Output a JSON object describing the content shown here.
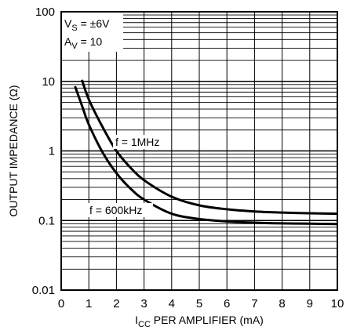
{
  "chart_data": {
    "type": "line",
    "xlabel_main": "I",
    "xlabel_sub": "CC",
    "xlabel_rest": " PER AMPLIFIER (mA)",
    "ylabel": "OUTPUT IMPEDANCE (Ω)",
    "x_ticks": [
      "0",
      "1",
      "2",
      "3",
      "4",
      "5",
      "6",
      "7",
      "8",
      "9",
      "10"
    ],
    "y_ticks": [
      "100",
      "10",
      "1",
      "0.1",
      "0.01"
    ],
    "xlim": [
      0,
      10
    ],
    "ylim": [
      0.01,
      100
    ],
    "y_scale": "log",
    "grid": true,
    "conditions": {
      "vs_main": "V",
      "vs_sub": "S",
      "vs_rest": " = ±6V",
      "av_main": "A",
      "av_sub": "V",
      "av_rest": " = 10"
    },
    "series": [
      {
        "name": "f = 1MHz",
        "x": [
          0.75,
          1.0,
          1.5,
          2.0,
          2.5,
          3.0,
          4.0,
          5.0,
          6.0,
          7.0,
          8.0,
          9.0,
          10.0
        ],
        "y": [
          10.5,
          5.5,
          2.2,
          1.0,
          0.58,
          0.38,
          0.22,
          0.165,
          0.145,
          0.135,
          0.13,
          0.127,
          0.125
        ]
      },
      {
        "name": "f = 600kHz",
        "x": [
          0.5,
          0.75,
          1.0,
          1.5,
          2.0,
          2.5,
          3.0,
          4.0,
          5.0,
          6.0,
          7.0,
          8.0,
          9.0,
          10.0
        ],
        "y": [
          8.5,
          4.5,
          2.4,
          0.95,
          0.48,
          0.29,
          0.2,
          0.125,
          0.105,
          0.097,
          0.093,
          0.091,
          0.09,
          0.089
        ]
      }
    ]
  }
}
